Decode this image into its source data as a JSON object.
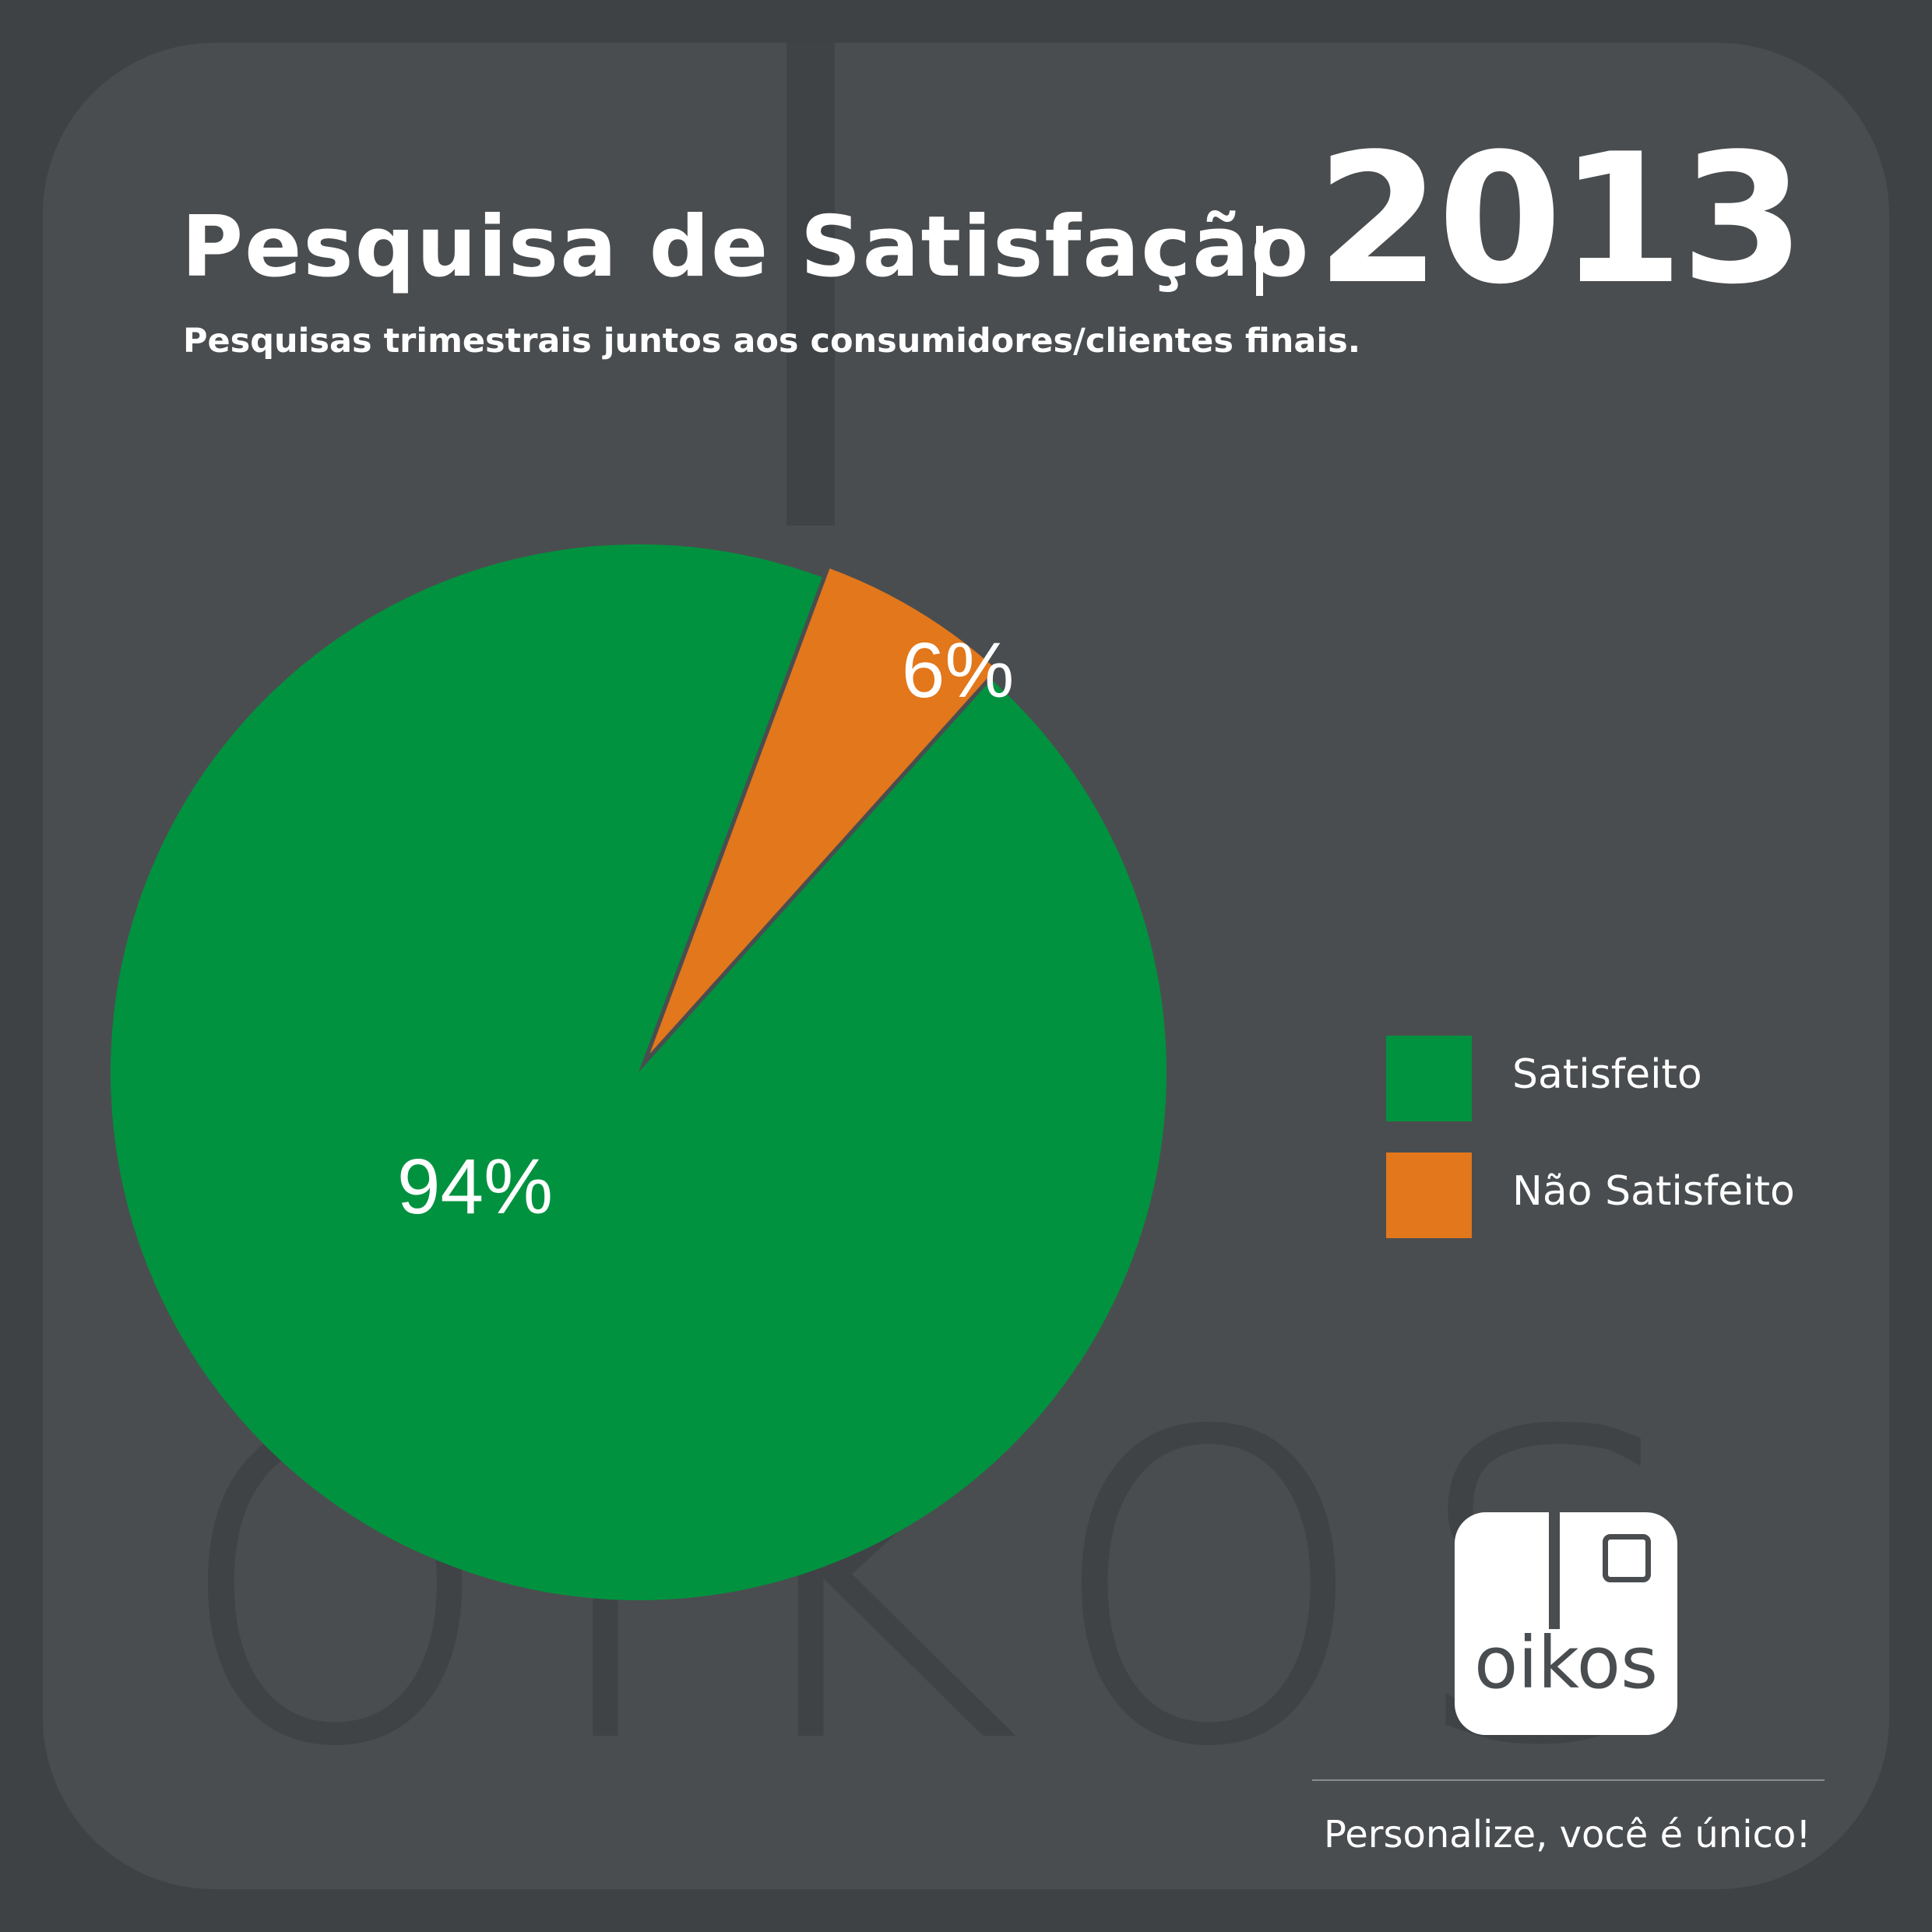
{
  "header": {
    "title": "Pesquisa de Satisfação",
    "year": "2013",
    "subtitle": "Pesquisas trimestrais juntos aos consumidores/clientes finais."
  },
  "chart_data": {
    "type": "pie",
    "title": "Pesquisa de Satisfação | 2013",
    "slices": [
      {
        "label": "Satisfeito",
        "value": 94,
        "display": "94%",
        "color": "#00923f"
      },
      {
        "label": "Não Satisfeito",
        "value": 6,
        "display": "6%",
        "color": "#e2771b"
      }
    ],
    "legend_placement": "right"
  },
  "brand": {
    "watermark": "oikos",
    "logo_text": "oikos",
    "tagline": "Personalize, você é único!"
  },
  "colors": {
    "background": "#3e4245",
    "panel": "#4a4d4f",
    "satisfied": "#00923f",
    "unsatisfied": "#e2771b"
  }
}
